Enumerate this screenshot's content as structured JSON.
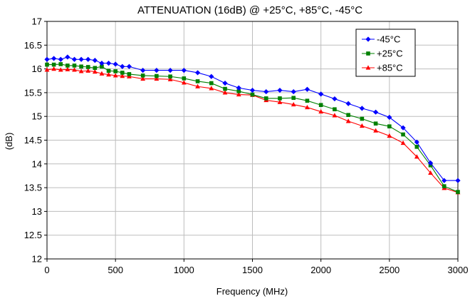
{
  "chart_data": {
    "type": "line",
    "title": "ATTENUATION (16dB) @ +25°C, +85°C, -45°C",
    "xlabel": "Frequency (MHz)",
    "ylabel": "(dB)",
    "xlim": [
      0,
      3000
    ],
    "ylim": [
      12,
      17
    ],
    "xticks": [
      0,
      500,
      1000,
      1500,
      2000,
      2500,
      3000
    ],
    "yticks": [
      12,
      12.5,
      13,
      13.5,
      14,
      14.5,
      15,
      15.5,
      16,
      16.5,
      17
    ],
    "ytick_labels": [
      "12",
      "12.5",
      "13",
      "13.5",
      "14",
      "14.5",
      "15",
      "15.5",
      "16",
      "16.5",
      "17"
    ],
    "grid": true,
    "legend_position": "top-right",
    "series": [
      {
        "name": "-45°C",
        "color": "#0000ff",
        "marker": "diamond",
        "x": [
          0,
          50,
          100,
          150,
          200,
          250,
          300,
          350,
          400,
          450,
          500,
          550,
          600,
          700,
          800,
          900,
          1000,
          1100,
          1200,
          1300,
          1400,
          1500,
          1600,
          1700,
          1800,
          1900,
          2000,
          2100,
          2200,
          2300,
          2400,
          2500,
          2600,
          2700,
          2800,
          2900,
          3000
        ],
        "y": [
          16.2,
          16.22,
          16.2,
          16.25,
          16.2,
          16.2,
          16.2,
          16.18,
          16.12,
          16.12,
          16.1,
          16.05,
          16.05,
          15.97,
          15.97,
          15.97,
          15.97,
          15.92,
          15.84,
          15.7,
          15.6,
          15.55,
          15.52,
          15.55,
          15.52,
          15.57,
          15.47,
          15.37,
          15.27,
          15.17,
          15.09,
          14.98,
          14.76,
          14.46,
          14.02,
          13.65,
          13.65
        ]
      },
      {
        "name": "+25°C",
        "color": "#008000",
        "marker": "square",
        "x": [
          0,
          50,
          100,
          150,
          200,
          250,
          300,
          350,
          400,
          450,
          500,
          550,
          600,
          700,
          800,
          900,
          1000,
          1100,
          1200,
          1300,
          1400,
          1500,
          1600,
          1700,
          1800,
          1900,
          2000,
          2100,
          2200,
          2300,
          2400,
          2500,
          2600,
          2700,
          2800,
          2900,
          3000
        ],
        "y": [
          16.09,
          16.09,
          16.1,
          16.07,
          16.07,
          16.05,
          16.04,
          16.02,
          16.05,
          15.96,
          15.95,
          15.92,
          15.89,
          15.86,
          15.85,
          15.84,
          15.8,
          15.74,
          15.7,
          15.58,
          15.53,
          15.46,
          15.38,
          15.38,
          15.39,
          15.33,
          15.24,
          15.15,
          15.03,
          14.95,
          14.85,
          14.79,
          14.62,
          14.36,
          13.97,
          13.53,
          13.41
        ]
      },
      {
        "name": "+85°C",
        "color": "#ff0000",
        "marker": "triangle",
        "x": [
          0,
          50,
          100,
          150,
          200,
          250,
          300,
          350,
          400,
          450,
          500,
          550,
          600,
          700,
          800,
          900,
          1000,
          1100,
          1200,
          1300,
          1400,
          1500,
          1600,
          1700,
          1800,
          1900,
          2000,
          2100,
          2200,
          2300,
          2400,
          2500,
          2600,
          2700,
          2800,
          2900,
          3000
        ],
        "y": [
          15.98,
          16.0,
          15.98,
          15.99,
          15.98,
          15.95,
          15.96,
          15.94,
          15.9,
          15.88,
          15.86,
          15.85,
          15.84,
          15.79,
          15.79,
          15.78,
          15.71,
          15.63,
          15.59,
          15.5,
          15.46,
          15.45,
          15.34,
          15.3,
          15.25,
          15.19,
          15.1,
          15.02,
          14.9,
          14.8,
          14.7,
          14.59,
          14.44,
          14.15,
          13.81,
          13.49,
          13.4
        ]
      }
    ]
  }
}
